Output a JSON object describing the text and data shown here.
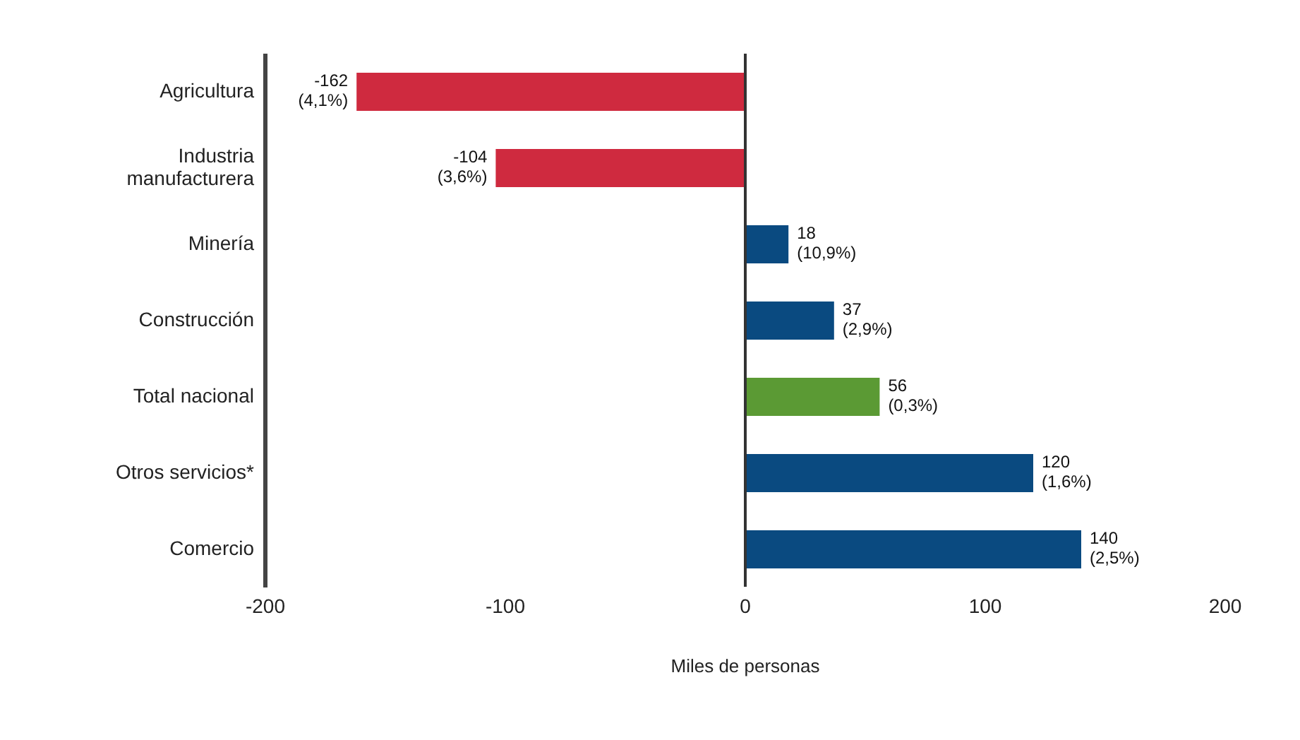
{
  "chart_data": {
    "type": "bar",
    "orientation": "horizontal",
    "xlabel": "Miles de personas",
    "categories": [
      "Agricultura",
      "Industria manufacturera",
      "Minería",
      "Construcción",
      "Total nacional",
      "Otros servicios*",
      "Comercio"
    ],
    "values": [
      -162,
      -104,
      18,
      37,
      56,
      120,
      140
    ],
    "colors": [
      "#cf2a3f",
      "#cf2a3f",
      "#0a4a80",
      "#0a4a80",
      "#5b9a34",
      "#0a4a80",
      "#0a4a80"
    ],
    "value_labels": [
      "-162\n(4,1%)",
      "-104\n(3,6%)",
      "18\n(10,9%)",
      "37\n(2,9%)",
      "56\n(0,3%)",
      "120\n(1,6%)",
      "140\n(2,5%)"
    ],
    "xlim": [
      -200,
      200
    ],
    "xticks": [
      -200,
      -100,
      0,
      100,
      200
    ],
    "ref_lines": [
      {
        "axis": "x",
        "value": 0,
        "color": "#333333"
      }
    ],
    "grid": false,
    "legend": false
  }
}
